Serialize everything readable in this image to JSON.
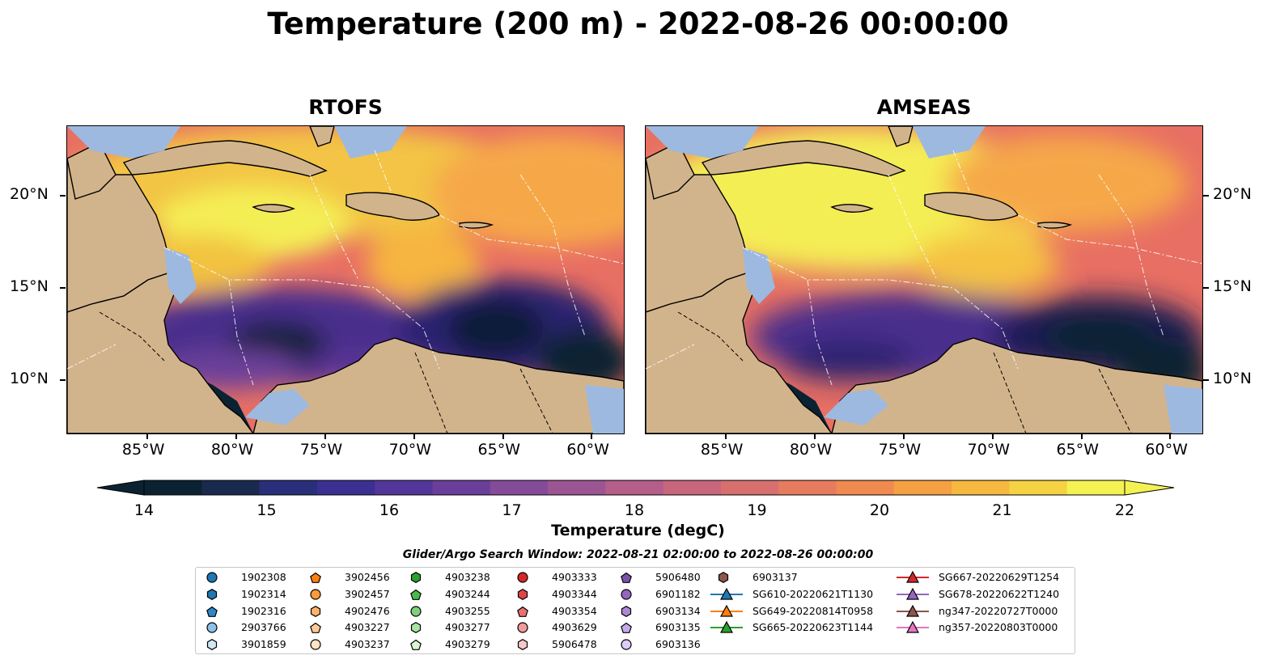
{
  "title": "Temperature (200 m) - 2022-08-26 00:00:00",
  "panels": [
    {
      "title": "RTOFS"
    },
    {
      "title": "AMSEAS"
    }
  ],
  "map": {
    "lon_range": [
      -89.5,
      -58.2
    ],
    "lat_range": [
      7.1,
      23.8
    ],
    "lon_ticks": [
      "85°W",
      "80°W",
      "75°W",
      "70°W",
      "65°W",
      "60°W"
    ],
    "lon_tick_values": [
      -85,
      -80,
      -75,
      -70,
      -65,
      -60
    ],
    "lat_ticks": [
      "20°N",
      "15°N",
      "10°N"
    ],
    "lat_tick_values": [
      20,
      15,
      10
    ],
    "colors": {
      "land": "#d2b48c",
      "shallow": "#9db9e0",
      "warm": "#f4f252",
      "cold": "#0b2232"
    }
  },
  "colorbar": {
    "label": "Temperature (degC)",
    "min": 14,
    "max": 22,
    "ticks": [
      "14",
      "15",
      "16",
      "17",
      "18",
      "19",
      "20",
      "21",
      "22"
    ],
    "colors": [
      "#0b2232",
      "#1a2a4f",
      "#2a2f7a",
      "#3b2f92",
      "#53369a",
      "#6a3f9a",
      "#844c98",
      "#9c5593",
      "#b45e8a",
      "#c7667d",
      "#d86f6f",
      "#e67b5f",
      "#f08a4f",
      "#f5a043",
      "#f6b83f",
      "#f5d242",
      "#f4f252"
    ]
  },
  "search_window": "Glider/Argo Search Window: 2022-08-21 02:00:00 to 2022-08-26 00:00:00",
  "legend": {
    "columns": [
      [
        {
          "label": "1902308",
          "marker": "circle",
          "color": "#1f77b4"
        },
        {
          "label": "1902314",
          "marker": "hexagon",
          "color": "#1f77b4"
        },
        {
          "label": "1902316",
          "marker": "pentagon",
          "color": "#2f86c5"
        },
        {
          "label": "2903766",
          "marker": "circle",
          "color": "#8fc0e6"
        },
        {
          "label": "3901859",
          "marker": "hexagon",
          "color": "#cfe8f5"
        }
      ],
      [
        {
          "label": "3902456",
          "marker": "pentagon",
          "color": "#ff7f0e"
        },
        {
          "label": "3902457",
          "marker": "circle",
          "color": "#ff9a3c"
        },
        {
          "label": "4902476",
          "marker": "hexagon",
          "color": "#ffb26b"
        },
        {
          "label": "4903227",
          "marker": "pentagon",
          "color": "#ffca99"
        },
        {
          "label": "4903237",
          "marker": "circle",
          "color": "#ffe3c4"
        }
      ],
      [
        {
          "label": "4903238",
          "marker": "hexagon",
          "color": "#2ca02c"
        },
        {
          "label": "4903244",
          "marker": "pentagon",
          "color": "#4cb84c"
        },
        {
          "label": "4903255",
          "marker": "circle",
          "color": "#7fd07a"
        },
        {
          "label": "4903277",
          "marker": "hexagon",
          "color": "#a9e3a3"
        },
        {
          "label": "4903279",
          "marker": "pentagon",
          "color": "#d8f4d2"
        }
      ],
      [
        {
          "label": "4903333",
          "marker": "circle",
          "color": "#d62728"
        },
        {
          "label": "4903344",
          "marker": "hexagon",
          "color": "#e04545"
        },
        {
          "label": "4903354",
          "marker": "pentagon",
          "color": "#ea6f6f"
        },
        {
          "label": "4903629",
          "marker": "circle",
          "color": "#f29a9a"
        },
        {
          "label": "5906478",
          "marker": "hexagon",
          "color": "#f9c8c8"
        }
      ],
      [
        {
          "label": "5906480",
          "marker": "pentagon",
          "color": "#7b52ab"
        },
        {
          "label": "6901182",
          "marker": "circle",
          "color": "#9467bd"
        },
        {
          "label": "6903134",
          "marker": "hexagon",
          "color": "#ad88d4"
        },
        {
          "label": "6903135",
          "marker": "pentagon",
          "color": "#c6a9e6"
        },
        {
          "label": "6903136",
          "marker": "circle",
          "color": "#dfccf5"
        }
      ],
      [
        {
          "label": "6903137",
          "marker": "hexagon",
          "color": "#8c564b"
        },
        {
          "label": "SG610-20220621T1130",
          "marker": "triangle",
          "color": "#1f77b4"
        },
        {
          "label": "SG649-20220814T0958",
          "marker": "triangle",
          "color": "#ff7f0e"
        },
        {
          "label": "SG665-20220623T1144",
          "marker": "triangle",
          "color": "#2ca02c"
        }
      ],
      [
        {
          "label": "SG667-20220629T1254",
          "marker": "triangle",
          "color": "#d62728"
        },
        {
          "label": "SG678-20220622T1240",
          "marker": "triangle",
          "color": "#9467bd"
        },
        {
          "label": "ng347-20220727T0000",
          "marker": "triangle",
          "color": "#8c564b"
        },
        {
          "label": "ng357-20220803T0000",
          "marker": "triangle",
          "color": "#e377c2"
        }
      ]
    ]
  }
}
